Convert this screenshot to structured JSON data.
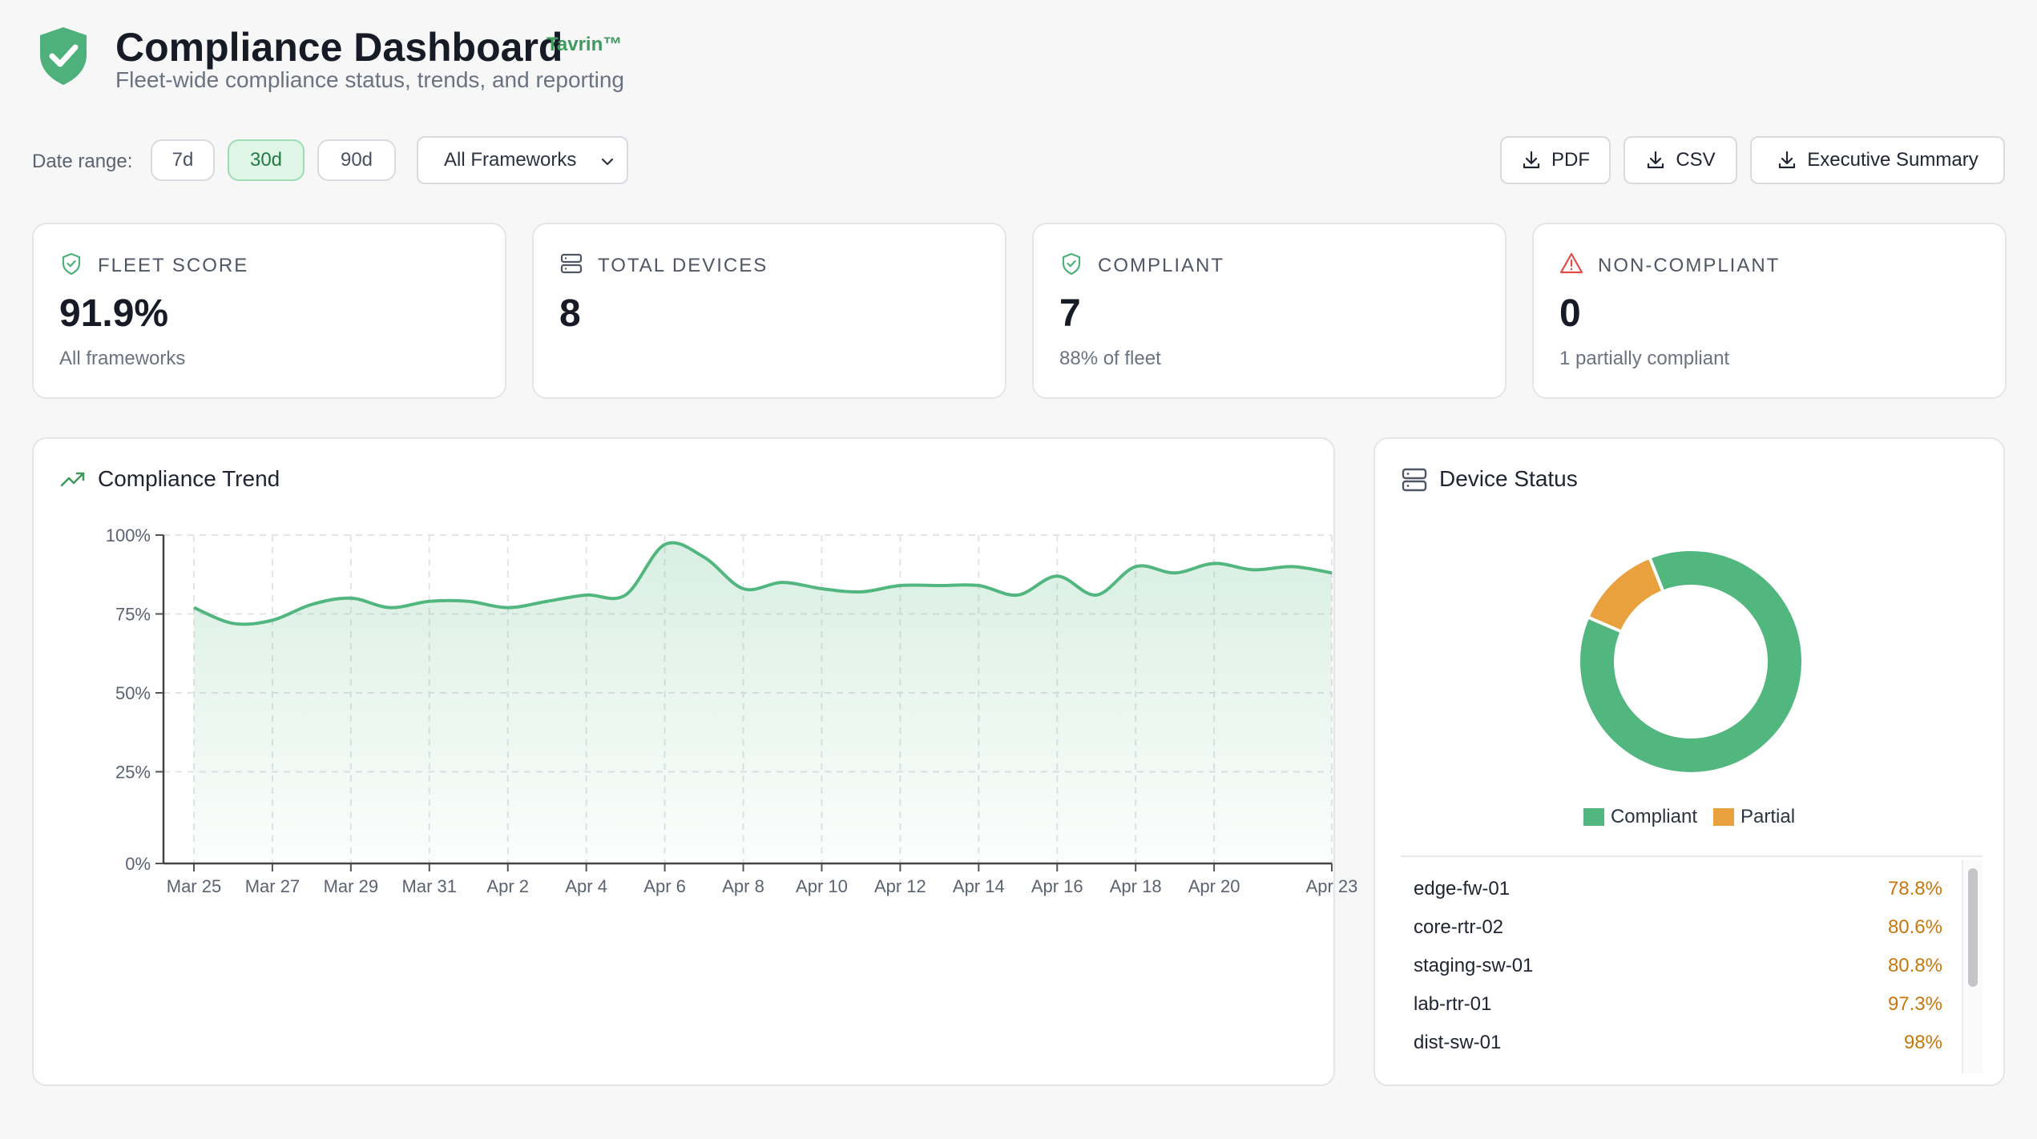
{
  "header": {
    "title": "Compliance Dashboard",
    "brand": "Tavrin™",
    "subtitle": "Fleet-wide compliance status, trends, and reporting"
  },
  "toolbar": {
    "date_range_label": "Date range:",
    "ranges": [
      "7d",
      "30d",
      "90d"
    ],
    "active_range": "30d",
    "framework_select": "All Frameworks",
    "exports": [
      "PDF",
      "CSV",
      "Executive Summary"
    ]
  },
  "stats": [
    {
      "label": "FLEET SCORE",
      "value": "91.9%",
      "sub": "All frameworks",
      "icon": "shield-check-icon"
    },
    {
      "label": "TOTAL DEVICES",
      "value": "8",
      "sub": "",
      "icon": "server-icon"
    },
    {
      "label": "COMPLIANT",
      "value": "7",
      "sub": "88% of fleet",
      "icon": "shield-check-icon"
    },
    {
      "label": "NON-COMPLIANT",
      "value": "0",
      "sub": "1 partially compliant",
      "icon": "alert-triangle-icon"
    }
  ],
  "trend": {
    "title": "Compliance Trend",
    "icon": "trending-up-icon"
  },
  "device_status": {
    "title": "Device Status",
    "icon": "server-icon",
    "devices": [
      {
        "name": "edge-fw-01",
        "score": "78.8%"
      },
      {
        "name": "core-rtr-02",
        "score": "80.6%"
      },
      {
        "name": "staging-sw-01",
        "score": "80.8%"
      },
      {
        "name": "lab-rtr-01",
        "score": "97.3%"
      },
      {
        "name": "dist-sw-01",
        "score": "98%"
      }
    ]
  },
  "colors": {
    "green": "#52b67f",
    "orange": "#e8a13c",
    "accent_text": "#3f9a5e"
  },
  "chart_data": [
    {
      "type": "area",
      "title": "",
      "xlabel": "",
      "ylabel": "",
      "ylim": [
        0,
        100
      ],
      "y_ticks": [
        "0%",
        "25%",
        "50%",
        "75%",
        "100%"
      ],
      "x_tick_labels": [
        "Mar 25",
        "Mar 27",
        "Mar 29",
        "Mar 31",
        "Apr 2",
        "Apr 4",
        "Apr 6",
        "Apr 8",
        "Apr 10",
        "Apr 12",
        "Apr 14",
        "Apr 16",
        "Apr 18",
        "Apr 20",
        "Apr 23"
      ],
      "grid": true,
      "x": [
        "Mar 25",
        "Mar 26",
        "Mar 27",
        "Mar 28",
        "Mar 29",
        "Mar 30",
        "Mar 31",
        "Apr 1",
        "Apr 2",
        "Apr 3",
        "Apr 4",
        "Apr 5",
        "Apr 6",
        "Apr 7",
        "Apr 8",
        "Apr 9",
        "Apr 10",
        "Apr 11",
        "Apr 12",
        "Apr 13",
        "Apr 14",
        "Apr 15",
        "Apr 16",
        "Apr 17",
        "Apr 18",
        "Apr 19",
        "Apr 20",
        "Apr 21",
        "Apr 22",
        "Apr 23"
      ],
      "series": [
        {
          "values": [
            77,
            72,
            73,
            78,
            80,
            77,
            79,
            79,
            77,
            79,
            81,
            81,
            97,
            93,
            83,
            85,
            83,
            82,
            84,
            84,
            84,
            81,
            87,
            81,
            90,
            88,
            91,
            89,
            90,
            88
          ]
        }
      ]
    },
    {
      "type": "pie",
      "title": "",
      "labels": [
        "Compliant",
        "Partial"
      ],
      "values": [
        7,
        1
      ],
      "colors": [
        "#52b67f",
        "#e8a13c"
      ],
      "legend": "bottom"
    }
  ]
}
